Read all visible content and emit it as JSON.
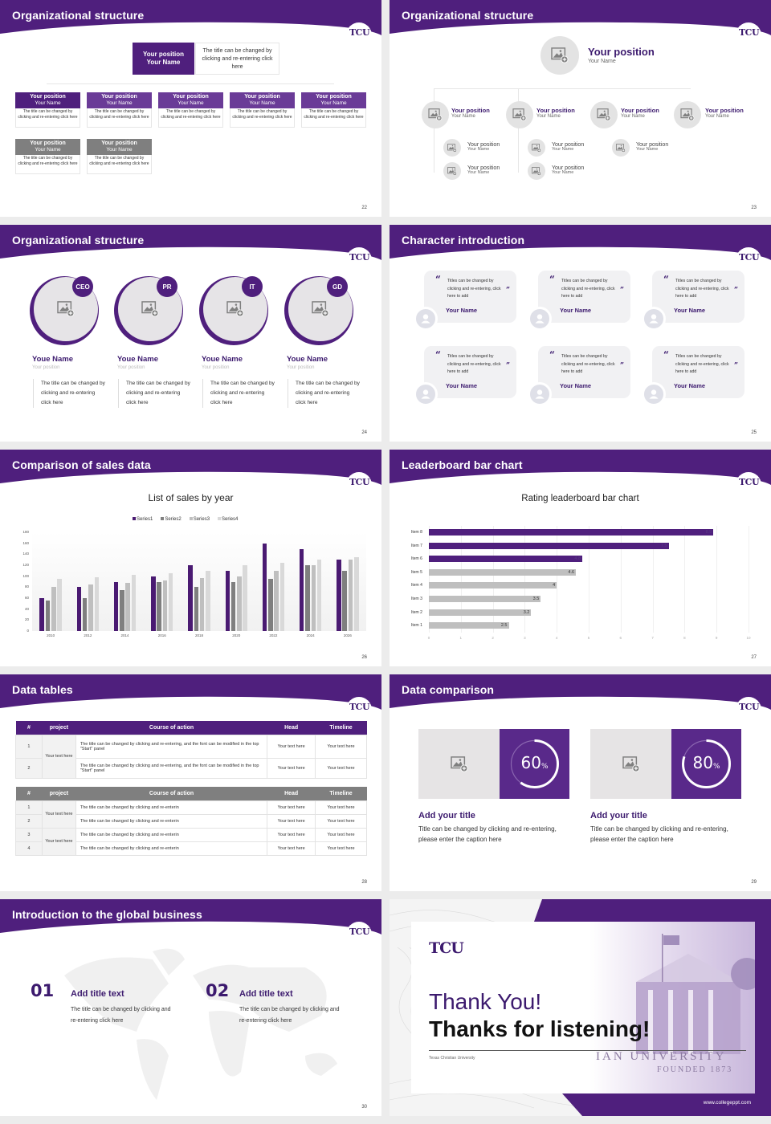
{
  "brand": {
    "logo_text": "TCU",
    "primary_color": "#4f1f7d",
    "dark_purple": "#3c1a6e",
    "gray": "#7f7f7f"
  },
  "slides": [
    {
      "title": "Organizational structure",
      "page": "22",
      "top": {
        "position": "Your position",
        "name": "Your Name",
        "desc": "The title can be changed by clicking and re-entering click here"
      },
      "row1": [
        {
          "position": "Your position",
          "name": "Your Name",
          "desc": "The title can be changed by clicking and re-entering click here"
        },
        {
          "position": "Your position",
          "name": "Your Name",
          "desc": "The title can be changed by clicking and re-entering click here"
        },
        {
          "position": "Your position",
          "name": "Your Name",
          "desc": "The title can be changed by clicking and re-entering click here"
        },
        {
          "position": "Your position",
          "name": "Your Name",
          "desc": "The title can be changed by clicking and re-entering click here"
        },
        {
          "position": "Your position",
          "name": "Your Name",
          "desc": "The title can be changed by clicking and re-entering click here"
        }
      ],
      "row2": [
        {
          "position": "Your position",
          "name": "Your Name",
          "desc": "The title can be changed by clicking and re-entering click here"
        },
        {
          "position": "Your position",
          "name": "Your Name",
          "desc": "The title can be changed by clicking and re-entering click here"
        }
      ]
    },
    {
      "title": "Organizational structure",
      "page": "23",
      "top": {
        "position": "Your position",
        "name": "Your Name"
      },
      "level2": [
        {
          "position": "Your position",
          "name": "Your Name"
        },
        {
          "position": "Your position",
          "name": "Your Name"
        },
        {
          "position": "Your position",
          "name": "Your Name"
        },
        {
          "position": "Your position",
          "name": "Your Name"
        }
      ],
      "level3": [
        {
          "position": "Your position",
          "name": "Your Name"
        },
        {
          "position": "Your position",
          "name": "Your Name"
        },
        {
          "position": "Your position",
          "name": "Your Name"
        },
        {
          "position": "Your position",
          "name": "Your Name"
        },
        {
          "position": "Your position",
          "name": "Your Name"
        }
      ]
    },
    {
      "title": "Organizational structure",
      "page": "24",
      "members": [
        {
          "tag": "CEO",
          "name": "Youe Name",
          "position": "Your position",
          "desc": "The title can be changed by clicking and re-entering click here"
        },
        {
          "tag": "PR",
          "name": "Youe Name",
          "position": "Your position",
          "desc": "The title can be changed by clicking and re-entering click here"
        },
        {
          "tag": "IT",
          "name": "Youe Name",
          "position": "Your position",
          "desc": "The title can be changed by clicking and re-entering click here"
        },
        {
          "tag": "GD",
          "name": "Youe Name",
          "position": "Your position",
          "desc": "The title can be changed by clicking and re-entering click here"
        }
      ]
    },
    {
      "title": "Character introduction",
      "page": "25",
      "quotes": [
        {
          "text": "Titles can be changed by clicking and re-entering, click here to add",
          "name": "Your Name"
        },
        {
          "text": "Titles can be changed by clicking and re-entering, click here to add",
          "name": "Your Name"
        },
        {
          "text": "Titles can be changed by clicking and re-entering, click here to add",
          "name": "Your Name"
        },
        {
          "text": "Titles can be changed by clicking and re-entering, click here to add",
          "name": "Your Name"
        },
        {
          "text": "Titles can be changed by clicking and re-entering, click here to add",
          "name": "Your Name"
        },
        {
          "text": "Titles can be changed by clicking and re-entering, click here to add",
          "name": "Your Name"
        }
      ],
      "open_quote": "“",
      "close_quote": "”"
    },
    {
      "title": "Comparison of sales data",
      "page": "26"
    },
    {
      "title": "Leaderboard bar chart",
      "page": "27"
    },
    {
      "title": "Data tables",
      "page": "28",
      "table1": {
        "headers": [
          "#",
          "project",
          "Course of action",
          "Head",
          "Timeline"
        ],
        "project": "Your text here",
        "rows": [
          {
            "n": "1",
            "action": "The title can be changed by clicking and re-entering, and the font can be modified in the top \"Start\" panel",
            "head": "Your text here",
            "timeline": "Your text here"
          },
          {
            "n": "2",
            "action": "The title can be changed by clicking and re-entering, and the font can be modified in the top \"Start\" panel",
            "head": "Your text here",
            "timeline": "Your text here"
          }
        ]
      },
      "table2": {
        "headers": [
          "#",
          "project",
          "Course of action",
          "Head",
          "Timeline"
        ],
        "projects": [
          "Your text here",
          "Your text here"
        ],
        "rows": [
          {
            "n": "1",
            "action": "The title can be changed by clicking and re-enterin",
            "head": "Your text here",
            "timeline": "Your text here"
          },
          {
            "n": "2",
            "action": "The title can be changed by clicking and re-enterin",
            "head": "Your text here",
            "timeline": "Your text here"
          },
          {
            "n": "3",
            "action": "The title can be changed by clicking and re-enterin",
            "head": "Your text here",
            "timeline": "Your text here"
          },
          {
            "n": "4",
            "action": "The title can be changed by clicking and re-enterin",
            "head": "Your text here",
            "timeline": "Your text here"
          }
        ]
      }
    },
    {
      "title": "Data comparison",
      "page": "29",
      "items": [
        {
          "value": "60",
          "unit": "%",
          "percent": 60,
          "title": "Add your title",
          "desc": "Title can be changed by clicking and re-entering, please enter the caption here"
        },
        {
          "value": "80",
          "unit": "%",
          "percent": 80,
          "title": "Add your title",
          "desc": "Title can be changed by clicking and re-entering, please enter the caption here"
        }
      ]
    },
    {
      "title": "Introduction to the global business",
      "page": "30",
      "items": [
        {
          "num": "01",
          "title": "Add title text",
          "desc": "The title can be changed by clicking and re-entering click here"
        },
        {
          "num": "02",
          "title": "Add title text",
          "desc": "The title can be changed by clicking and re-entering click here"
        }
      ]
    },
    {
      "thanks": "Thank You!",
      "listening": "Thanks for listening!",
      "university": "Texas Christian University",
      "sign_text": "IAN  UNIVERSITY",
      "founded": "FOUNDED 1873",
      "website": "www.collegeppt.com"
    }
  ],
  "chart_data": [
    {
      "type": "bar",
      "title": "List of sales by year",
      "categories": [
        "2010",
        "2012",
        "2014",
        "2016",
        "2018",
        "2020",
        "2022",
        "2024",
        "2026"
      ],
      "series": [
        {
          "name": "Series1",
          "color": "#4a1a72",
          "values": [
            60,
            80,
            90,
            100,
            120,
            110,
            160,
            150,
            130
          ]
        },
        {
          "name": "Series2",
          "color": "#7f7f7f",
          "values": [
            55,
            60,
            75,
            90,
            80,
            90,
            95,
            120,
            110
          ]
        },
        {
          "name": "Series3",
          "color": "#bfbfbf",
          "values": [
            80,
            85,
            88,
            92,
            97,
            100,
            110,
            120,
            130
          ]
        },
        {
          "name": "Series4",
          "color": "#d9d9d9",
          "values": [
            95,
            98,
            102,
            105,
            110,
            120,
            125,
            130,
            135
          ]
        }
      ],
      "yticks": [
        0,
        20,
        40,
        60,
        80,
        100,
        120,
        140,
        160,
        180
      ],
      "ylim": [
        0,
        180
      ],
      "legend_position": "top",
      "grid": false
    },
    {
      "type": "bar",
      "orientation": "horizontal",
      "title": "Rating leaderboard bar chart",
      "categories": [
        "Item 1",
        "Item 2",
        "Item 3",
        "Item 4",
        "Item 5",
        "Item 6",
        "Item 7",
        "Item 8"
      ],
      "values": [
        2.5,
        3.2,
        3.5,
        4,
        4.6,
        4.8,
        7.5,
        8.9
      ],
      "labels": [
        "2.5",
        "3.2",
        "3.5",
        "4",
        "4.6",
        "4.8",
        "7.5",
        "8.9"
      ],
      "highlight_colors": {
        "top3": "#4f1f7d",
        "rest": "#bfbfbf"
      },
      "xticks": [
        0,
        1,
        2,
        3,
        4,
        5,
        6,
        7,
        8,
        9,
        10
      ],
      "xlim": [
        0,
        10
      ],
      "grid": true
    }
  ]
}
